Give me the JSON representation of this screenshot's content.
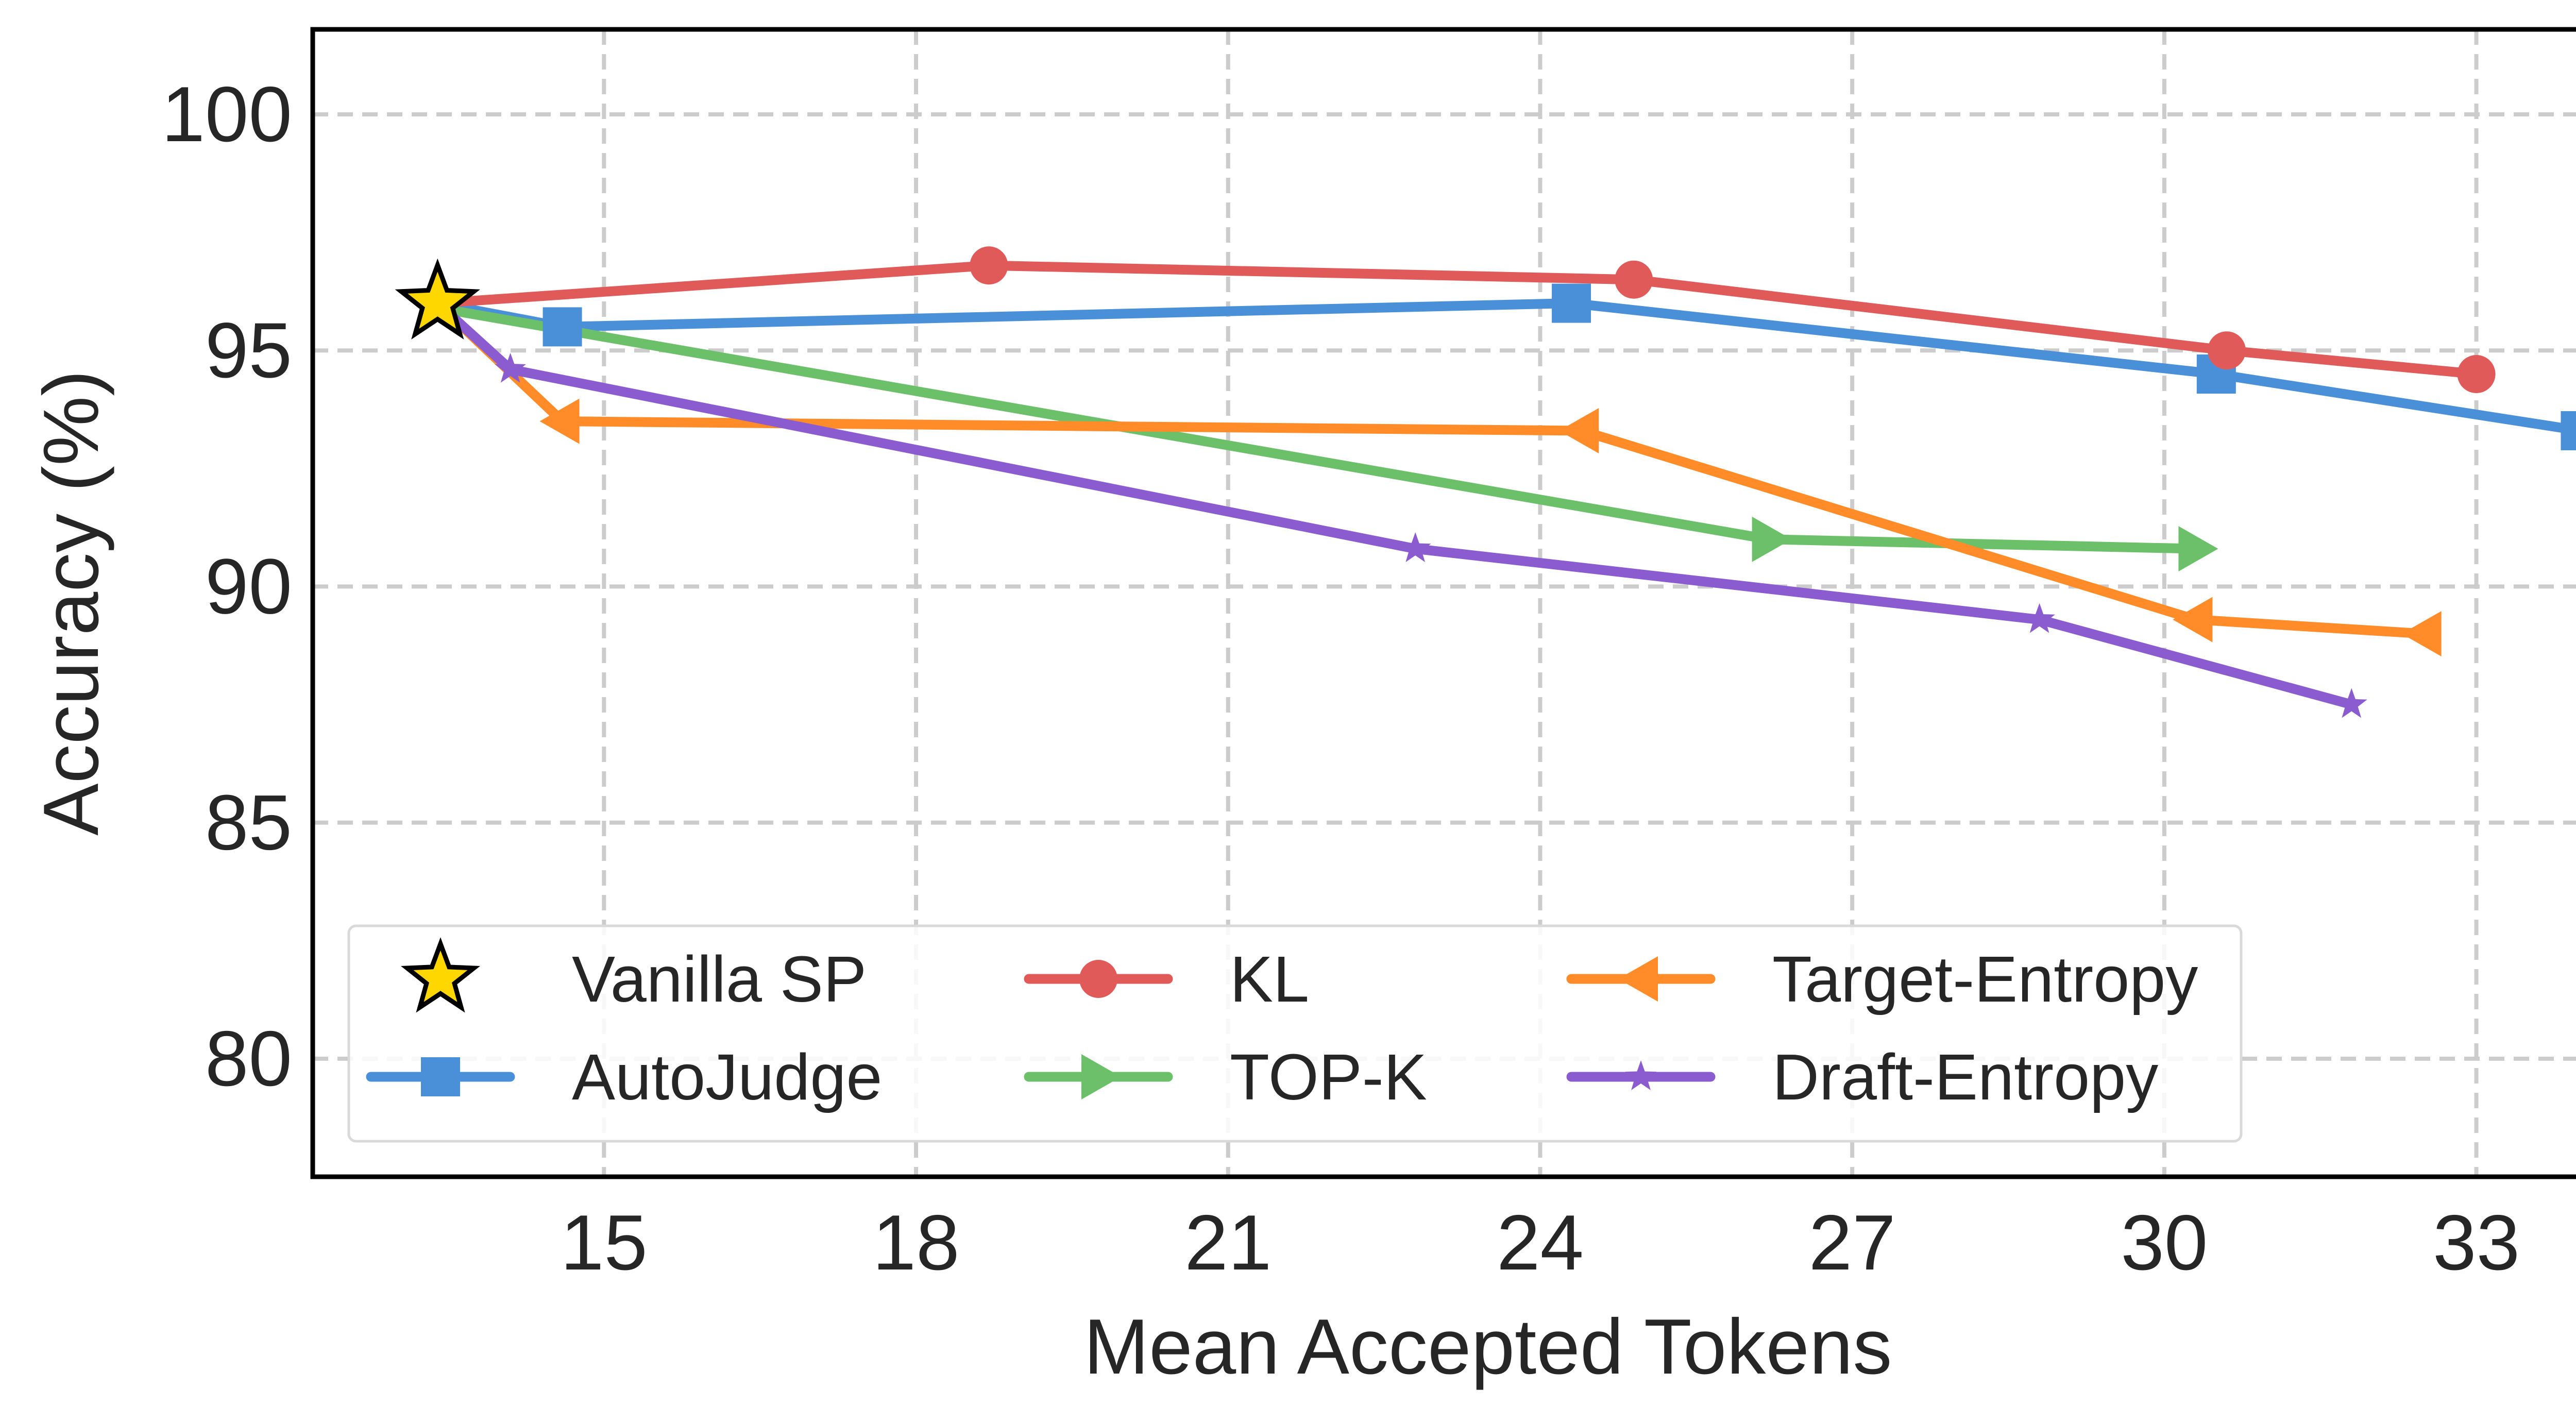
{
  "chart_data": {
    "type": "line",
    "xlabel": "Mean Accepted Tokens",
    "ylabel": "Accuracy (%)",
    "xlim": [
      12.2,
      34.8
    ],
    "ylim": [
      77.5,
      101.8
    ],
    "xticks": [
      15,
      18,
      21,
      24,
      27,
      30,
      33
    ],
    "yticks": [
      80,
      85,
      90,
      95,
      100
    ],
    "grid": true,
    "legend_position": "lower-left",
    "legend_columns": 3,
    "reference_point": {
      "name": "Vanilla SP",
      "x": 13.4,
      "y": 96.0,
      "marker": "star",
      "color": "#FFD700"
    },
    "series": [
      {
        "name": "AutoJudge",
        "color": "#4A90D9",
        "marker": "square",
        "x": [
          13.4,
          14.6,
          24.3,
          30.5,
          34.0
        ],
        "y": [
          96.0,
          95.5,
          96.0,
          94.5,
          93.3
        ]
      },
      {
        "name": "KL",
        "color": "#E05A5A",
        "marker": "circle",
        "x": [
          13.4,
          18.7,
          24.9,
          30.6,
          33.0
        ],
        "y": [
          96.0,
          96.8,
          96.5,
          95.0,
          94.5
        ]
      },
      {
        "name": "TOP-K",
        "color": "#6DC06A",
        "marker": "triangle-right",
        "x": [
          13.4,
          26.2,
          30.3
        ],
        "y": [
          95.9,
          91.0,
          90.8
        ]
      },
      {
        "name": "Target-Entropy",
        "color": "#FF8C28",
        "marker": "triangle-left",
        "x": [
          13.4,
          14.6,
          24.4,
          30.3,
          32.5
        ],
        "y": [
          96.0,
          93.5,
          93.3,
          89.3,
          89.0
        ]
      },
      {
        "name": "Draft-Entropy",
        "color": "#8A5CD0",
        "marker": "star-small",
        "x": [
          13.4,
          14.1,
          22.8,
          28.8,
          31.8
        ],
        "y": [
          96.0,
          94.6,
          90.8,
          89.3,
          87.5
        ]
      }
    ]
  }
}
